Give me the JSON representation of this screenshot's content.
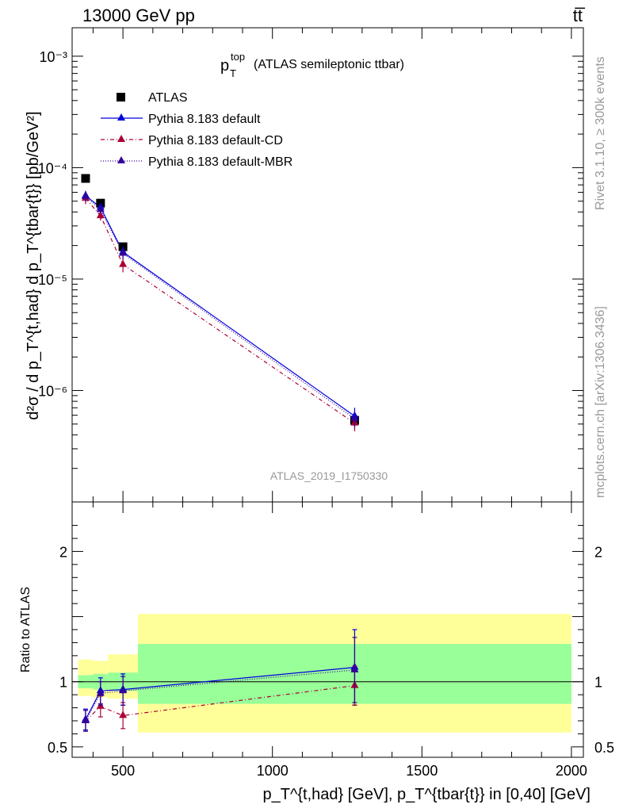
{
  "header": {
    "energy": "13000 GeV pp",
    "process": "tt̅"
  },
  "side": {
    "rivet": "Rivet 3.1.10, ≥ 300k events",
    "mcplots": "mcplots.cern.ch [arXiv:1306.3436]"
  },
  "colors": {
    "default": "#0000dd",
    "cd": "#aa0033",
    "mbr": "#330099",
    "band_inner": "#99ff99",
    "band_outer": "#ffff99"
  },
  "chart_data": [
    {
      "type": "line",
      "title": "p_T^top (ATLAS semileptonic ttbar)",
      "title_main": "p",
      "title_sub": "T",
      "title_sup": "top",
      "title_rest": "(ATLAS semileptonic ttbar)",
      "watermark": "ATLAS_2019_I1750330",
      "xlabel": "p_T^{t,had} [GeV], p_T^{tbar{t}} in [0,40] [GeV]",
      "ylabel": "d²σ / d p_T^{t,had} d p_T^{tbar{t}} [pb/GeV²]",
      "xlim": [
        330,
        2040
      ],
      "ylim": [
        1e-07,
        0.0018
      ],
      "yscale": "log",
      "y_ticks": [
        {
          "value": 0.001,
          "label": "10⁻³"
        },
        {
          "value": 0.0001,
          "label": "10⁻⁴"
        },
        {
          "value": 1e-05,
          "label": "10⁻⁵"
        },
        {
          "value": 1e-06,
          "label": "10⁻⁶"
        }
      ],
      "legend": [
        {
          "key": "atlas",
          "label": "ATLAS"
        },
        {
          "key": "default",
          "label": "Pythia 8.183 default"
        },
        {
          "key": "cd",
          "label": "Pythia 8.183 default-CD"
        },
        {
          "key": "mbr",
          "label": "Pythia 8.183 default-MBR"
        }
      ],
      "series": [
        {
          "key": "atlas",
          "name": "ATLAS",
          "x": [
            375,
            425,
            500,
            1275
          ],
          "y": [
            8e-05,
            4.8e-05,
            1.95e-05,
            5.4e-07
          ]
        },
        {
          "key": "default",
          "name": "Pythia 8.183 default",
          "x": [
            375,
            425,
            500,
            1275
          ],
          "y": [
            5.6e-05,
            4.4e-05,
            1.75e-05,
            5.9e-07
          ],
          "err": [
            6e-06,
            3.5e-06,
            2e-06,
            1.1e-07
          ]
        },
        {
          "key": "cd",
          "name": "Pythia 8.183 default-CD",
          "x": [
            375,
            425,
            500,
            1275
          ],
          "y": [
            5.3e-05,
            3.7e-05,
            1.35e-05,
            5.1e-07
          ],
          "err": [
            6e-06,
            3.5e-06,
            2e-06,
            8e-08
          ]
        },
        {
          "key": "mbr",
          "name": "Pythia 8.183 default-MBR",
          "x": [
            375,
            425,
            500,
            1275
          ],
          "y": [
            5.5e-05,
            4.2e-05,
            1.7e-05,
            5.6e-07
          ],
          "err": [
            6e-06,
            3.5e-06,
            2e-06,
            1e-07
          ]
        }
      ]
    },
    {
      "type": "line",
      "ylabel": "Ratio to ATLAS",
      "xlim": [
        330,
        2040
      ],
      "ylim": [
        0.42,
        2.38
      ],
      "x_ticks": [
        500,
        1000,
        1500,
        2000
      ],
      "y_ticks": [
        {
          "value": 0.5,
          "label": "0.5"
        },
        {
          "value": 1,
          "label": "1"
        },
        {
          "value": 2,
          "label": "2"
        }
      ],
      "reference_line": 1.0,
      "bands": [
        {
          "x0": 350,
          "x1": 400,
          "inner": [
            0.95,
            1.05
          ],
          "outer": [
            0.89,
            1.17
          ]
        },
        {
          "x0": 400,
          "x1": 450,
          "inner": [
            0.94,
            1.06
          ],
          "outer": [
            0.88,
            1.16
          ]
        },
        {
          "x0": 450,
          "x1": 550,
          "inner": [
            0.93,
            1.07
          ],
          "outer": [
            0.87,
            1.21
          ]
        },
        {
          "x0": 550,
          "x1": 2000,
          "inner": [
            0.83,
            1.29
          ],
          "outer": [
            0.61,
            1.52
          ]
        }
      ],
      "series": [
        {
          "key": "default",
          "name": "Pythia 8.183 default",
          "x": [
            375,
            425,
            500,
            1275
          ],
          "y": [
            0.71,
            0.93,
            0.94,
            1.11
          ],
          "err": [
            0.08,
            0.1,
            0.12,
            0.29
          ]
        },
        {
          "key": "cd",
          "name": "Pythia 8.183 default-CD",
          "x": [
            375,
            425,
            500,
            1275
          ],
          "y": [
            0.7,
            0.81,
            0.74,
            0.97
          ],
          "err": [
            0.08,
            0.08,
            0.1,
            0.15
          ]
        },
        {
          "key": "mbr",
          "name": "Pythia 8.183 default-MBR",
          "x": [
            375,
            425,
            500,
            1275
          ],
          "y": [
            0.7,
            0.91,
            0.93,
            1.09
          ],
          "err": [
            0.08,
            0.09,
            0.11,
            0.25
          ]
        }
      ]
    }
  ]
}
